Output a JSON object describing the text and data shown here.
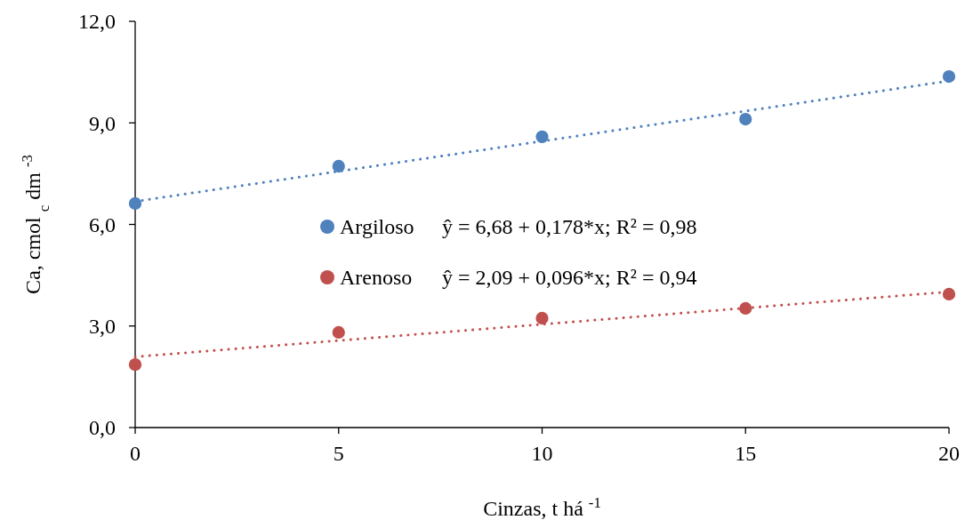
{
  "chart_data": {
    "type": "scatter",
    "xlabel": "Cinzas, t há $^{-1}$",
    "ylabel": "Ca, cmol $_{c}$ dm $^{-3}$",
    "xlim": [
      0,
      20
    ],
    "xticks": [
      0,
      5,
      10,
      15,
      20
    ],
    "ylim": [
      0,
      12
    ],
    "yticks": [
      {
        "value": 0,
        "label": "0,0"
      },
      {
        "value": 3,
        "label": "3,0"
      },
      {
        "value": 6,
        "label": "6,0"
      },
      {
        "value": 9,
        "label": "9,0"
      },
      {
        "value": 12,
        "label": "12,0"
      }
    ],
    "grid": false,
    "legend": "center",
    "marker": "circle",
    "annotations": [
      "ŷ = 6,68 + 0,178*x; R² = 0,98",
      "ŷ = 2,09 + 0,096*x; R² = 0,94"
    ],
    "series": [
      {
        "name": "Argiloso",
        "color": "#4f81bd",
        "x": [
          0,
          5,
          10,
          15,
          20
        ],
        "values": [
          6.62,
          7.72,
          8.59,
          9.11,
          10.37
        ]
      },
      {
        "name": "Arenoso",
        "color": "#c0504d",
        "x": [
          0,
          5,
          10,
          15,
          20
        ],
        "values": [
          1.86,
          2.81,
          3.23,
          3.52,
          3.94
        ]
      },
      {
        "type": "line",
        "line_style": "dotted",
        "marker": "none",
        "color": "#4f81bd",
        "x": [
          0,
          20
        ],
        "values": [
          6.68,
          10.24
        ]
      },
      {
        "type": "line",
        "line_style": "dotted",
        "marker": "none",
        "color": "#c0504d",
        "x": [
          0,
          20
        ],
        "values": [
          2.09,
          4.01
        ]
      }
    ]
  }
}
